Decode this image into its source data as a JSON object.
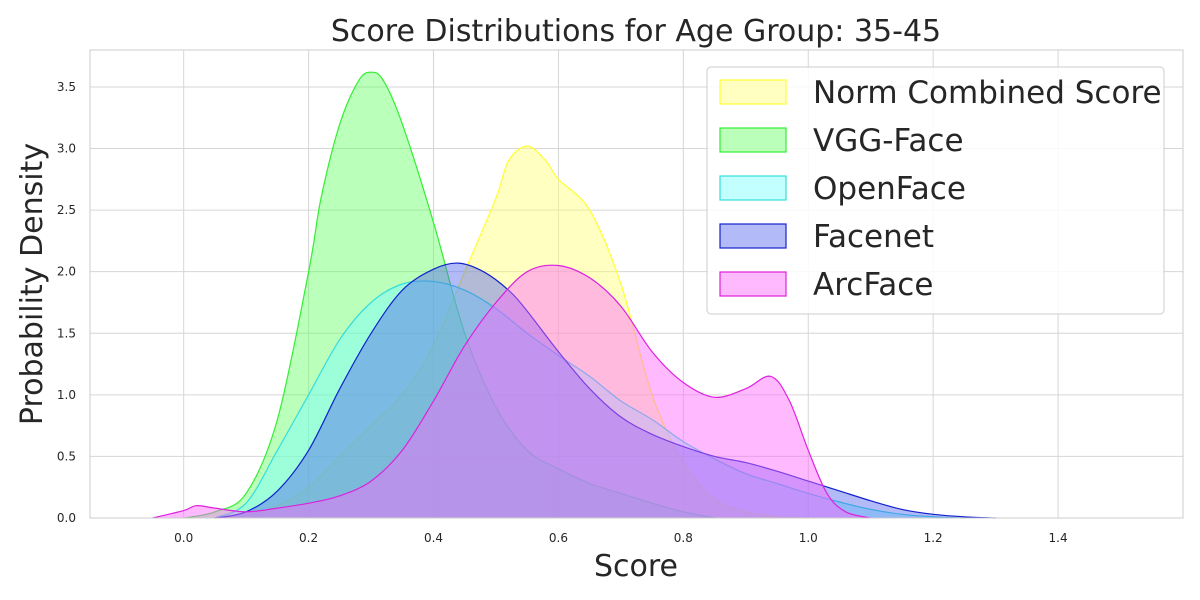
{
  "chart_data": {
    "type": "area",
    "title": "Score Distributions for Age Group: 35-45",
    "xlabel": "Score",
    "ylabel": "Probability Density",
    "xlim": [
      -0.15,
      1.6
    ],
    "ylim": [
      0,
      3.8
    ],
    "xticks": [
      0.0,
      0.2,
      0.4,
      0.6,
      0.8,
      1.0,
      1.2,
      1.4
    ],
    "yticks": [
      0.0,
      0.5,
      1.0,
      1.5,
      2.0,
      2.5,
      3.0,
      3.5
    ],
    "grid": true,
    "legend_position": "top-right",
    "series": [
      {
        "name": "Norm Combined Score",
        "color": "#ffff33",
        "fill": "#ffff77",
        "x": [
          0.05,
          0.1,
          0.15,
          0.2,
          0.25,
          0.3,
          0.35,
          0.4,
          0.45,
          0.5,
          0.52,
          0.55,
          0.58,
          0.6,
          0.65,
          0.7,
          0.75,
          0.8,
          0.85,
          0.9,
          0.95,
          1.0
        ],
        "y": [
          0.0,
          0.02,
          0.1,
          0.25,
          0.5,
          0.75,
          1.0,
          1.4,
          2.0,
          2.6,
          2.9,
          3.02,
          2.9,
          2.75,
          2.5,
          1.9,
          1.0,
          0.45,
          0.15,
          0.05,
          0.01,
          0.0
        ]
      },
      {
        "name": "VGG-Face",
        "color": "#33ee33",
        "fill": "#66ff66",
        "x": [
          0.0,
          0.05,
          0.1,
          0.15,
          0.2,
          0.22,
          0.25,
          0.28,
          0.3,
          0.32,
          0.35,
          0.4,
          0.45,
          0.5,
          0.55,
          0.6,
          0.65,
          0.7,
          0.75,
          0.8,
          0.85
        ],
        "y": [
          0.0,
          0.05,
          0.2,
          0.8,
          2.0,
          2.6,
          3.2,
          3.55,
          3.62,
          3.55,
          3.2,
          2.4,
          1.5,
          0.9,
          0.55,
          0.4,
          0.28,
          0.2,
          0.12,
          0.05,
          0.0
        ]
      },
      {
        "name": "OpenFace",
        "color": "#33dddd",
        "fill": "#77ffff",
        "x": [
          0.05,
          0.1,
          0.15,
          0.2,
          0.25,
          0.3,
          0.35,
          0.4,
          0.45,
          0.5,
          0.55,
          0.6,
          0.65,
          0.7,
          0.75,
          0.8,
          0.85,
          0.9,
          0.95,
          1.0,
          1.05,
          1.1,
          1.15,
          1.2,
          1.25
        ],
        "y": [
          0.0,
          0.12,
          0.55,
          1.0,
          1.45,
          1.75,
          1.9,
          1.92,
          1.85,
          1.7,
          1.5,
          1.32,
          1.15,
          0.95,
          0.8,
          0.62,
          0.48,
          0.36,
          0.28,
          0.2,
          0.13,
          0.07,
          0.03,
          0.01,
          0.0
        ]
      },
      {
        "name": "Facenet",
        "color": "#1122cc",
        "fill": "#5566ee",
        "x": [
          0.05,
          0.1,
          0.15,
          0.2,
          0.25,
          0.3,
          0.35,
          0.4,
          0.44,
          0.48,
          0.52,
          0.55,
          0.6,
          0.65,
          0.7,
          0.75,
          0.8,
          0.85,
          0.9,
          0.95,
          1.0,
          1.05,
          1.1,
          1.15,
          1.2,
          1.25,
          1.3
        ],
        "y": [
          0.0,
          0.05,
          0.22,
          0.55,
          1.05,
          1.5,
          1.85,
          2.02,
          2.07,
          2.0,
          1.85,
          1.68,
          1.35,
          1.05,
          0.82,
          0.68,
          0.58,
          0.5,
          0.45,
          0.38,
          0.3,
          0.22,
          0.14,
          0.07,
          0.03,
          0.01,
          0.0
        ]
      },
      {
        "name": "ArcFace",
        "color": "#dd22dd",
        "fill": "#ff66ff",
        "x": [
          -0.05,
          0.0,
          0.02,
          0.05,
          0.1,
          0.15,
          0.2,
          0.25,
          0.3,
          0.35,
          0.4,
          0.45,
          0.5,
          0.55,
          0.6,
          0.65,
          0.7,
          0.75,
          0.8,
          0.85,
          0.9,
          0.94,
          0.97,
          1.0,
          1.03,
          1.06,
          1.1
        ],
        "y": [
          0.0,
          0.06,
          0.1,
          0.08,
          0.05,
          0.08,
          0.12,
          0.18,
          0.3,
          0.55,
          0.95,
          1.4,
          1.75,
          2.0,
          2.05,
          1.95,
          1.72,
          1.35,
          1.1,
          0.98,
          1.05,
          1.15,
          0.95,
          0.55,
          0.2,
          0.05,
          0.0
        ]
      }
    ]
  }
}
